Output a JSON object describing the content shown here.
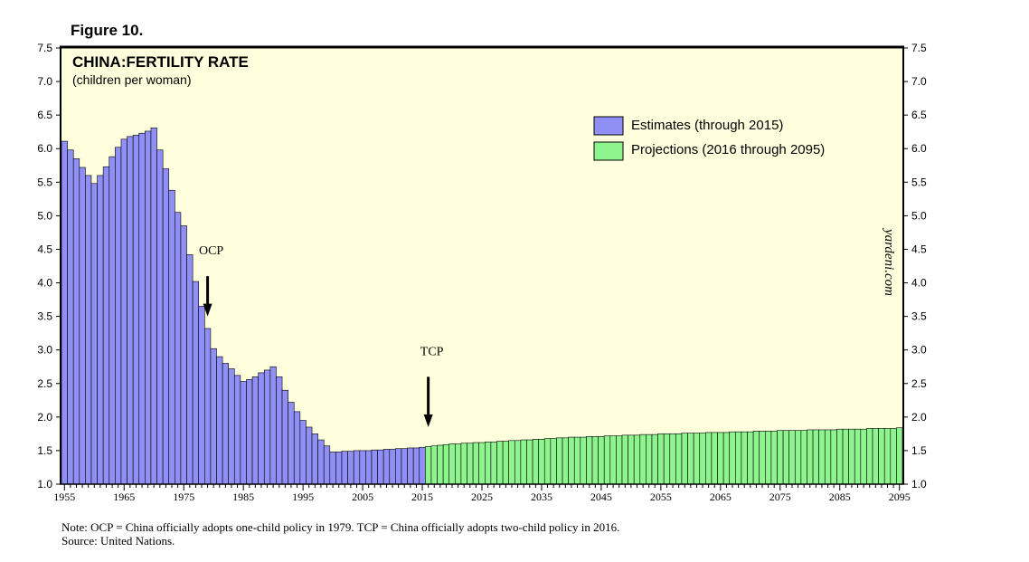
{
  "figure_label": "Figure 10.",
  "watermark": "yardeni.com",
  "note": {
    "line1": "Note: OCP = China officially adopts one-child policy in 1979. TCP = China officially adopts two-child policy in 2016.",
    "line2": "Source: United Nations."
  },
  "colors": {
    "plot_bg": "#ffffdd",
    "estimates": "#8f8ff5",
    "projections": "#8ef58e"
  },
  "chart_data": {
    "type": "bar",
    "title": "CHINA:FERTILITY RATE",
    "subtitle": "(children per woman)",
    "ylim": [
      1.0,
      7.5
    ],
    "xlim": [
      1955,
      2095
    ],
    "y_ticks": [
      "1.0",
      "1.5",
      "2.0",
      "2.5",
      "3.0",
      "3.5",
      "4.0",
      "4.5",
      "5.0",
      "5.5",
      "6.0",
      "6.5",
      "7.0",
      "7.5"
    ],
    "x_ticks": [
      "1955",
      "1965",
      "1975",
      "1985",
      "1995",
      "2005",
      "2015",
      "2025",
      "2035",
      "2045",
      "2055",
      "2065",
      "2075",
      "2085",
      "2095"
    ],
    "legend": {
      "placement": "top-right",
      "entries": [
        "Estimates (through 2015)",
        "Projections (2016 through 2095)"
      ]
    },
    "annotations": [
      {
        "label": "OCP",
        "year": 1979,
        "arrow_top": 4.1,
        "arrow_bottom": 3.5
      },
      {
        "label": "TCP",
        "year": 2016,
        "arrow_top": 2.6,
        "arrow_bottom": 1.85
      }
    ],
    "series": [
      {
        "name": "Estimates (through 2015)",
        "start_year": 1955,
        "values": [
          6.11,
          5.98,
          5.85,
          5.72,
          5.6,
          5.48,
          5.6,
          5.73,
          5.88,
          6.02,
          6.14,
          6.18,
          6.2,
          6.23,
          6.26,
          6.31,
          5.98,
          5.7,
          5.38,
          5.05,
          4.85,
          4.42,
          4.02,
          3.65,
          3.32,
          3.02,
          2.9,
          2.8,
          2.72,
          2.62,
          2.53,
          2.56,
          2.6,
          2.66,
          2.7,
          2.75,
          2.6,
          2.4,
          2.22,
          2.08,
          1.95,
          1.85,
          1.75,
          1.66,
          1.57,
          1.48,
          1.48,
          1.49,
          1.49,
          1.5,
          1.5,
          1.5,
          1.51,
          1.51,
          1.52,
          1.52,
          1.53,
          1.53,
          1.54,
          1.54,
          1.55
        ]
      },
      {
        "name": "Projections (2016 through 2095)",
        "start_year": 2016,
        "values": [
          1.56,
          1.57,
          1.58,
          1.59,
          1.6,
          1.6,
          1.61,
          1.61,
          1.62,
          1.62,
          1.63,
          1.63,
          1.64,
          1.64,
          1.65,
          1.65,
          1.66,
          1.66,
          1.67,
          1.67,
          1.68,
          1.68,
          1.69,
          1.69,
          1.7,
          1.7,
          1.7,
          1.71,
          1.71,
          1.71,
          1.72,
          1.72,
          1.72,
          1.73,
          1.73,
          1.73,
          1.74,
          1.74,
          1.74,
          1.75,
          1.75,
          1.75,
          1.75,
          1.76,
          1.76,
          1.76,
          1.76,
          1.77,
          1.77,
          1.77,
          1.77,
          1.78,
          1.78,
          1.78,
          1.78,
          1.79,
          1.79,
          1.79,
          1.79,
          1.8,
          1.8,
          1.8,
          1.8,
          1.8,
          1.81,
          1.81,
          1.81,
          1.81,
          1.81,
          1.82,
          1.82,
          1.82,
          1.82,
          1.82,
          1.83,
          1.83,
          1.83,
          1.83,
          1.83,
          1.84
        ]
      }
    ]
  }
}
